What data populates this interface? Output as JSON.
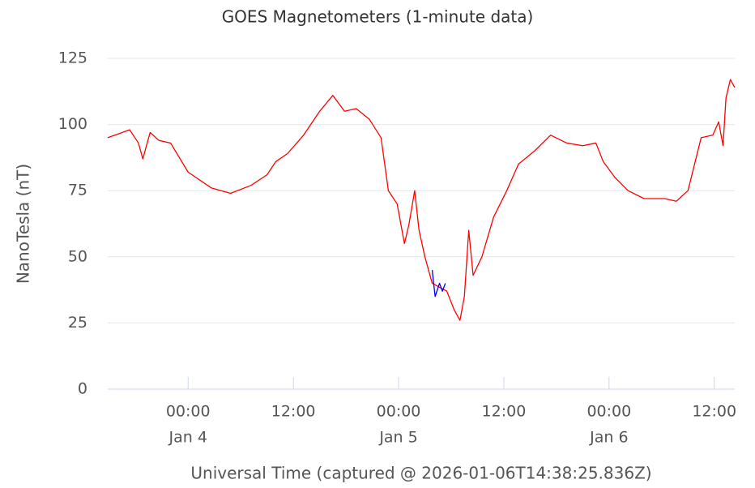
{
  "chart_data": {
    "type": "line",
    "title": "GOES Magnetometers (1-minute data)",
    "y_label": "NanoTesla (nT)",
    "x_label": "Universal Time (captured @ 2026-01-06T14:38:25.836Z)",
    "xlim": [
      "Jan 3 14:50",
      "Jan 6 14:20"
    ],
    "xticks": [
      {
        "value": "Jan 4 00:00",
        "label": "00:00",
        "date": "Jan 4"
      },
      {
        "value": "Jan 4 12:00",
        "label": "12:00"
      },
      {
        "value": "Jan 5 00:00",
        "label": "00:00",
        "date": "Jan 5"
      },
      {
        "value": "Jan 5 12:00",
        "label": "12:00"
      },
      {
        "value": "Jan 6 00:00",
        "label": "00:00",
        "date": "Jan 6"
      },
      {
        "value": "Jan 6 12:00",
        "label": "12:00"
      }
    ],
    "ylim": [
      0,
      125
    ],
    "yticks": [
      0,
      25,
      50,
      75,
      100,
      125
    ],
    "grid": true,
    "series": [
      {
        "color": "#ff0000",
        "x": [
          "Jan 3 14:50",
          "Jan 3 16:30",
          "Jan 3 17:20",
          "Jan 3 18:20",
          "Jan 3 18:50",
          "Jan 3 19:40",
          "Jan 3 20:40",
          "Jan 3 22:00",
          "Jan 4 00:00",
          "Jan 4 02:40",
          "Jan 4 04:50",
          "Jan 4 07:10",
          "Jan 4 09:00",
          "Jan 4 10:00",
          "Jan 4 11:20",
          "Jan 4 13:10",
          "Jan 4 15:00",
          "Jan 4 16:30",
          "Jan 4 17:50",
          "Jan 4 19:10",
          "Jan 4 20:40",
          "Jan 4 22:00",
          "Jan 4 22:50",
          "Jan 4 23:50",
          "Jan 5 00:40",
          "Jan 5 01:10",
          "Jan 5 01:50",
          "Jan 5 02:20",
          "Jan 5 03:00",
          "Jan 5 03:50",
          "Jan 5 05:30",
          "Jan 5 06:20",
          "Jan 5 07:00",
          "Jan 5 07:30",
          "Jan 5 08:00",
          "Jan 5 08:30",
          "Jan 5 09:30",
          "Jan 5 10:50",
          "Jan 5 12:20",
          "Jan 5 13:40",
          "Jan 5 15:30",
          "Jan 5 17:20",
          "Jan 5 19:10",
          "Jan 5 21:00",
          "Jan 5 22:30",
          "Jan 5 23:20",
          "Jan 6 00:40",
          "Jan 6 02:10",
          "Jan 6 04:00",
          "Jan 6 06:20",
          "Jan 6 07:40",
          "Jan 6 09:00",
          "Jan 6 10:30",
          "Jan 6 11:50",
          "Jan 6 12:30",
          "Jan 6 13:00",
          "Jan 6 13:20",
          "Jan 6 13:50",
          "Jan 6 14:20"
        ],
        "values": [
          95,
          97,
          98,
          93,
          87,
          97,
          94,
          93,
          82,
          76,
          74,
          77,
          81,
          86,
          89,
          96,
          105,
          111,
          105,
          106,
          102,
          95,
          75,
          70,
          55,
          62,
          75,
          60,
          50,
          40,
          37,
          30,
          26,
          35,
          60,
          43,
          50,
          65,
          75,
          85,
          90,
          96,
          93,
          92,
          93,
          86,
          80,
          75,
          72,
          72,
          71,
          75,
          95,
          96,
          101,
          92,
          110,
          117,
          114
        ]
      },
      {
        "color": "#0000ff",
        "x": [
          "Jan 5 03:50",
          "Jan 5 04:10",
          "Jan 5 04:40",
          "Jan 5 05:00",
          "Jan 5 05:20"
        ],
        "values": [
          45,
          35,
          40,
          37,
          40
        ]
      }
    ]
  }
}
